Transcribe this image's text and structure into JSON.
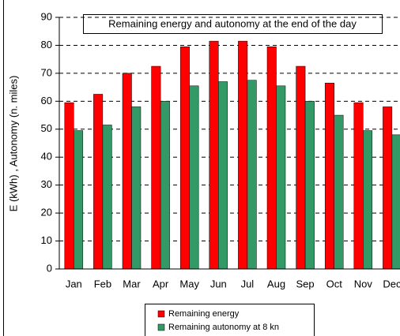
{
  "chart_data": {
    "type": "bar",
    "title": "Remaining energy and autonomy at the end of the day",
    "y_label": "E (kWh) , Autonomy (n. miles)",
    "categories": [
      "Jan",
      "Feb",
      "Mar",
      "Apr",
      "May",
      "Jun",
      "Jul",
      "Aug",
      "Sep",
      "Oct",
      "Nov",
      "Dec"
    ],
    "series": [
      {
        "name": "Remaining energy",
        "color": "#ff0000",
        "values": [
          59.5,
          62.5,
          70,
          72.5,
          79.5,
          81.5,
          81.5,
          79.5,
          72.5,
          66.5,
          59.5,
          58
        ]
      },
      {
        "name": "Remaining autonomy at 8 kn",
        "color": "#339966",
        "values": [
          49.5,
          51.5,
          58,
          60,
          65.5,
          67,
          67.5,
          65.5,
          60,
          55,
          49.5,
          48
        ]
      }
    ],
    "ylim": [
      0,
      90
    ],
    "yticks": [
      0,
      10,
      20,
      30,
      40,
      50,
      60,
      70,
      80,
      90
    ],
    "grid": true,
    "legend": "bottom"
  }
}
